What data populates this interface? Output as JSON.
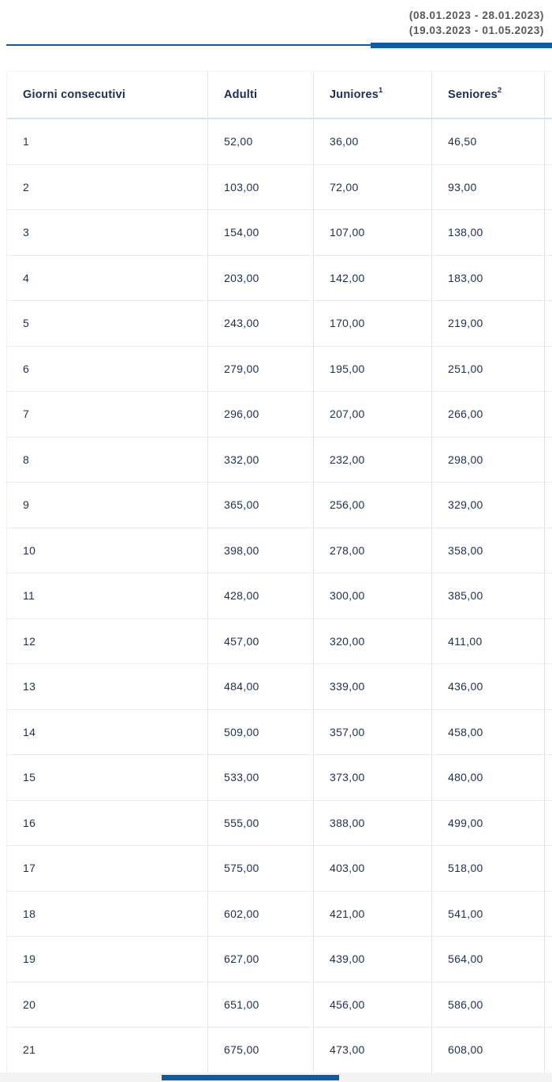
{
  "season_tab": {
    "period_line1": "(08.01.2023 - 28.01.2023)",
    "period_line2": "(19.03.2023 - 01.05.2023)"
  },
  "table": {
    "columns": [
      {
        "label": "Giorni consecutivi",
        "sup": ""
      },
      {
        "label": "Adulti",
        "sup": ""
      },
      {
        "label": "Juniores",
        "sup": "1"
      },
      {
        "label": "Seniores",
        "sup": "2"
      },
      {
        "label": "",
        "sup": ""
      }
    ],
    "rows": [
      [
        "1",
        "52,00",
        "36,00",
        "46,50"
      ],
      [
        "2",
        "103,00",
        "72,00",
        "93,00"
      ],
      [
        "3",
        "154,00",
        "107,00",
        "138,00"
      ],
      [
        "4",
        "203,00",
        "142,00",
        "183,00"
      ],
      [
        "5",
        "243,00",
        "170,00",
        "219,00"
      ],
      [
        "6",
        "279,00",
        "195,00",
        "251,00"
      ],
      [
        "7",
        "296,00",
        "207,00",
        "266,00"
      ],
      [
        "8",
        "332,00",
        "232,00",
        "298,00"
      ],
      [
        "9",
        "365,00",
        "256,00",
        "329,00"
      ],
      [
        "10",
        "398,00",
        "278,00",
        "358,00"
      ],
      [
        "11",
        "428,00",
        "300,00",
        "385,00"
      ],
      [
        "12",
        "457,00",
        "320,00",
        "411,00"
      ],
      [
        "13",
        "484,00",
        "339,00",
        "436,00"
      ],
      [
        "14",
        "509,00",
        "357,00",
        "458,00"
      ],
      [
        "15",
        "533,00",
        "373,00",
        "480,00"
      ],
      [
        "16",
        "555,00",
        "388,00",
        "499,00"
      ],
      [
        "17",
        "575,00",
        "403,00",
        "518,00"
      ],
      [
        "18",
        "602,00",
        "421,00",
        "541,00"
      ],
      [
        "19",
        "627,00",
        "439,00",
        "564,00"
      ],
      [
        "20",
        "651,00",
        "456,00",
        "586,00"
      ],
      [
        "21",
        "675,00",
        "473,00",
        "608,00"
      ]
    ]
  },
  "colors": {
    "accent_blue": "#0e5bab",
    "header_underline_blue": "#cfe4f6",
    "text_navy": "#1c2f52",
    "date_gray": "#58585a"
  }
}
